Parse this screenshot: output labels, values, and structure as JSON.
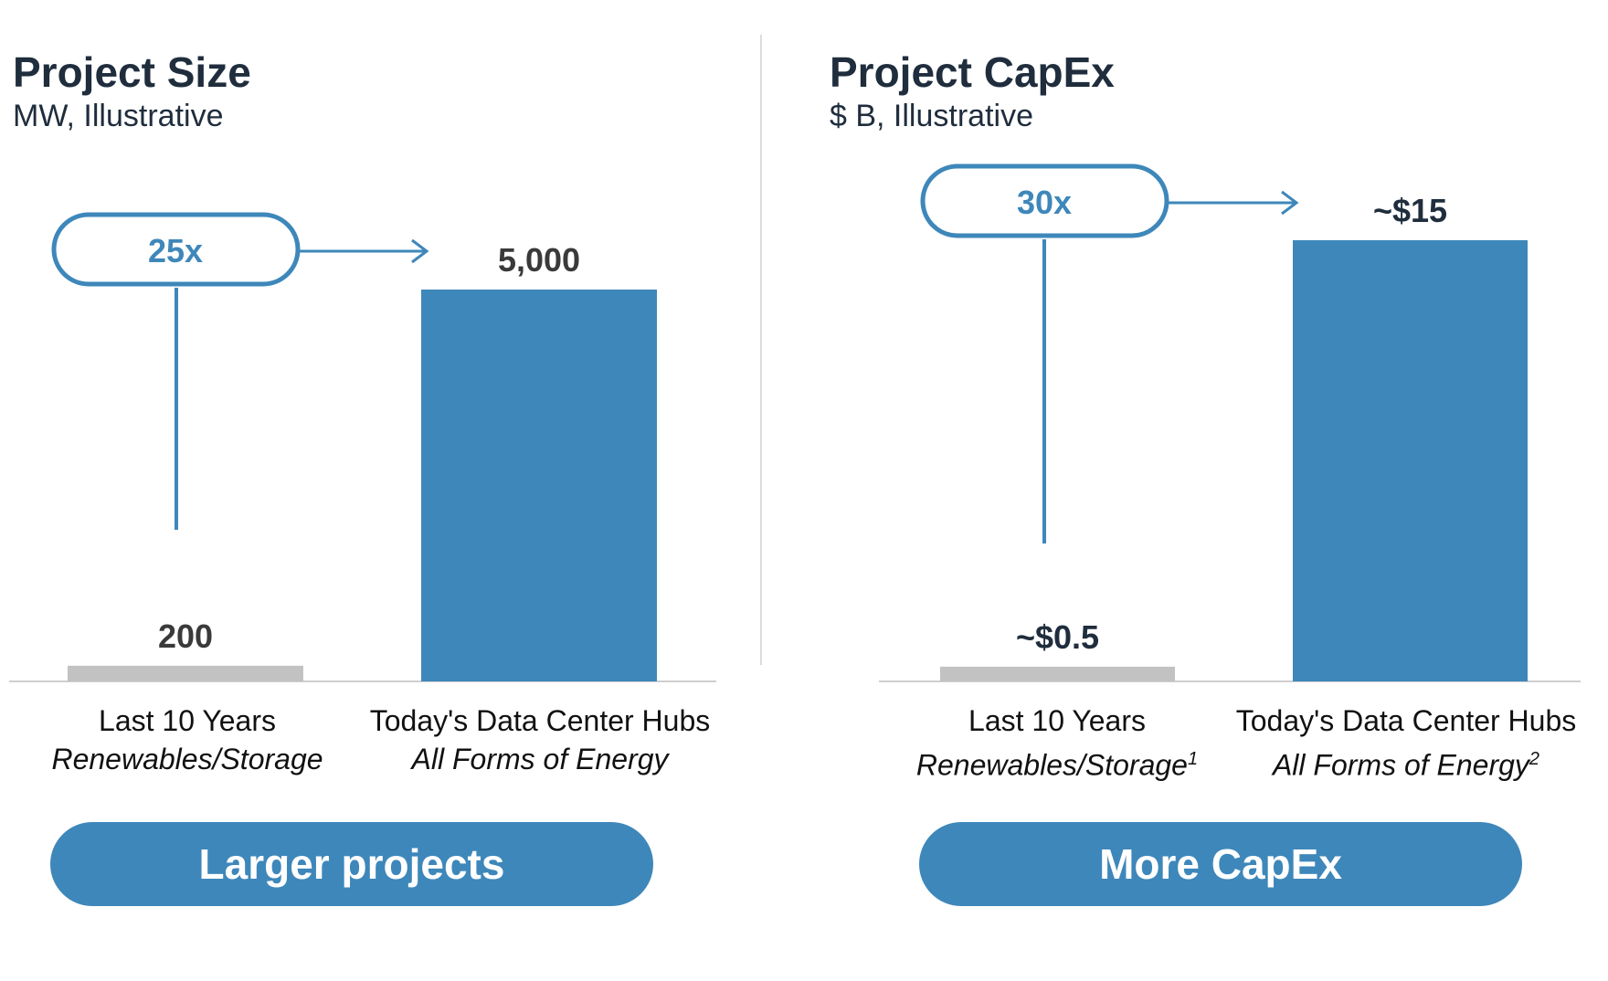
{
  "colors": {
    "bar_primary": "#3e87ba",
    "bar_muted": "#c2c2c2",
    "text_dark": "#1f2d3d",
    "label_dark": "#3a3a3a"
  },
  "charts": {
    "chart_data": [
      {
        "type": "bar",
        "title": "Project Size",
        "subtitle": "MW, Illustrative",
        "categories": [
          "Last 10 Years",
          "Today's Data Center Hubs"
        ],
        "category_sublabels": [
          "Renewables/Storage",
          "All Forms of Energy"
        ],
        "values": [
          200,
          5000
        ],
        "data_labels": [
          "200",
          "5,000"
        ],
        "multiplier_label": "25x",
        "button_label": "Larger projects"
      },
      {
        "type": "bar",
        "title": "Project CapEx",
        "subtitle": "$ B, Illustrative",
        "categories": [
          "Last 10 Years",
          "Today's Data Center Hubs"
        ],
        "category_sublabels": [
          "Renewables/Storage",
          "All Forms of Energy"
        ],
        "category_footnotes": [
          "1",
          "2"
        ],
        "values": [
          0.5,
          15
        ],
        "data_labels": [
          "~$0.5",
          "~$15"
        ],
        "multiplier_label": "30x",
        "button_label": "More CapEx"
      }
    ]
  }
}
